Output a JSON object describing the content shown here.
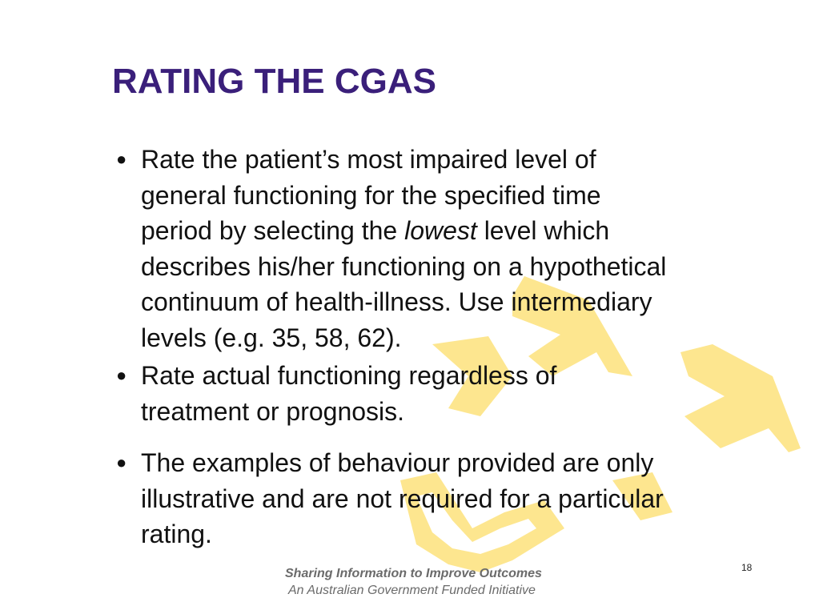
{
  "slide": {
    "title": "RATING THE CGAS",
    "bullets": [
      {
        "lines": [
          {
            "before": "Rate the patient’s most impaired level of"
          },
          {
            "before": "general functioning for the specified time"
          },
          {
            "before": "period by selecting the ",
            "emphasis": "lowest",
            "after": " level which"
          },
          {
            "before": "describes his/her functioning on a hypothetical"
          },
          {
            "before": "continuum of health-illness. Use intermediary"
          },
          {
            "before": "levels (e.g. 35, 58, 62)."
          }
        ]
      },
      {
        "lines": [
          {
            "before": "Rate actual functioning regardless of"
          },
          {
            "before": "treatment or prognosis."
          }
        ]
      },
      {
        "lines": [
          {
            "before": "The examples of behaviour provided are only"
          },
          {
            "before": "illustrative and are not required for a particular"
          },
          {
            "before": "rating."
          }
        ]
      }
    ],
    "bullet_symbol": "●",
    "page_number": "18"
  },
  "footer": {
    "line1": "Sharing Information to Improve Outcomes",
    "line2": "An Australian Government Funded Initiative"
  },
  "colors": {
    "title": "#3a1f7a",
    "body_text": "#111111",
    "arrow_fill": "#fde68f",
    "footer_text": "#6b6b6b"
  },
  "icons": {
    "background_graphic": "yellow-arrows-icon"
  }
}
